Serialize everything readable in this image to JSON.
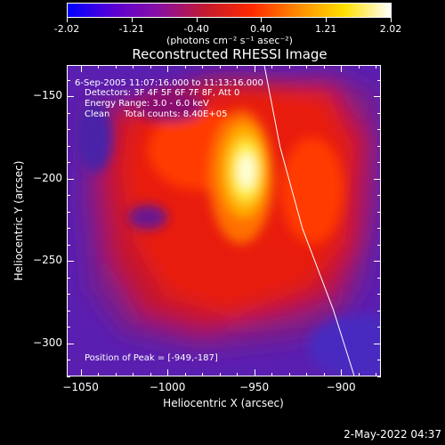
{
  "colorbar": {
    "min_label": "-2.02",
    "tick_labels": [
      "-2.02",
      "-1.21",
      "-0.40",
      "0.40",
      "1.21",
      "2.02"
    ],
    "unit_label": "(photons cm⁻² s⁻¹ asec⁻²)",
    "colors": [
      "#0000ff",
      "#5a00d4",
      "#8b10a0",
      "#c41a2e",
      "#ff2a00",
      "#ff8c00",
      "#ffe000",
      "#ffffff"
    ]
  },
  "title": "Reconstructed RHESSI Image",
  "info": {
    "time_range": "6-Sep-2005 11:07:16.000 to 11:13:16.000",
    "detectors": "Detectors: 3F 4F 5F 6F 7F 8F, Att 0",
    "energy": "Energy Range: 3.0 - 6.0 keV",
    "method_counts": "Clean     Total counts: 8.40E+05",
    "peak": "Position of Peak = [-949,-187]"
  },
  "axes": {
    "xlabel": "Heliocentric X (arcsec)",
    "ylabel": "Heliocentric Y (arcsec)",
    "x_range": [
      -1058,
      -877
    ],
    "y_range": [
      -320,
      -131
    ],
    "x_ticks": [
      -1050,
      -1000,
      -950,
      -900
    ],
    "x_tick_labels": [
      "−1050",
      "−1000",
      "−950",
      "−900"
    ],
    "y_ticks": [
      -150,
      -200,
      -250,
      -300
    ],
    "y_tick_labels": [
      "−150",
      "−200",
      "−250",
      "−300"
    ]
  },
  "plot_date": "2-May-2022 04:37",
  "chart_data": {
    "type": "heatmap",
    "title": "Reconstructed RHESSI Image",
    "xlabel": "Heliocentric X (arcsec)",
    "ylabel": "Heliocentric Y (arcsec)",
    "xlim": [
      -1058,
      -877
    ],
    "ylim": [
      -320,
      -131
    ],
    "value_range": [
      -2.02,
      2.02
    ],
    "peak_position": [
      -949,
      -187
    ],
    "peak_value": 2.02,
    "limb_line": [
      [
        -944,
        -131
      ],
      [
        -935,
        -180
      ],
      [
        -922,
        -230
      ],
      [
        -904,
        -280
      ],
      [
        -892,
        -320
      ]
    ]
  }
}
